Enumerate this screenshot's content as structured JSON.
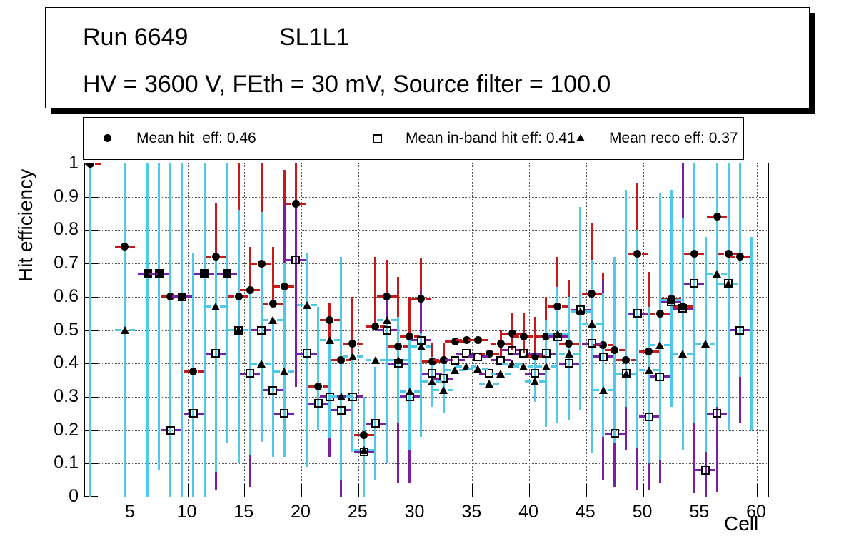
{
  "title": {
    "run": "Run 6649",
    "layer": "SL1L1",
    "conditions": "HV = 3600 V, FEth = 30 mV, Source filter = 100.0"
  },
  "legend": [
    {
      "label": "Mean hit  eff: 0.46",
      "marker": "circle"
    },
    {
      "label": "Mean in-band hit eff: 0.41",
      "marker": "open-square"
    },
    {
      "label": "Mean reco eff: 0.37",
      "marker": "triangle"
    }
  ],
  "chart_data": {
    "type": "scatter",
    "title": "",
    "xlabel": "Cell",
    "ylabel": "Hit efficiency",
    "xlim": [
      1,
      61
    ],
    "ylim": [
      0,
      1
    ],
    "x_ticks": [
      5,
      10,
      15,
      20,
      25,
      30,
      35,
      40,
      45,
      50,
      55,
      60
    ],
    "y_ticks": [
      0,
      0.1,
      0.2,
      0.3,
      0.4,
      0.5,
      0.6,
      0.7,
      0.8,
      0.9,
      1
    ],
    "grid": true,
    "legend_position": "top",
    "colors": {
      "hit_bar": "#c61a1a",
      "inband_bar": "#7a1fa2",
      "reco_bar": "#4ec9e8",
      "marker": "#000000"
    },
    "series": [
      {
        "name": "Mean hit  eff: 0.46",
        "marker": "circle",
        "mean": 0.46,
        "points": [
          [
            1,
            1.0
          ],
          [
            4,
            0.75
          ],
          [
            6,
            0.67
          ],
          [
            7,
            0.67
          ],
          [
            8,
            0.6
          ],
          [
            9,
            0.6
          ],
          [
            10,
            0.375
          ],
          [
            11,
            0.67
          ],
          [
            12,
            0.72
          ],
          [
            13,
            0.67
          ],
          [
            14,
            0.6
          ],
          [
            15,
            0.62
          ],
          [
            16,
            0.7
          ],
          [
            17,
            0.58
          ],
          [
            18,
            0.63
          ],
          [
            19,
            0.88
          ],
          [
            21,
            0.33
          ],
          [
            22,
            0.53
          ],
          [
            23,
            0.41
          ],
          [
            24,
            0.46
          ],
          [
            25,
            0.185
          ],
          [
            26,
            0.51
          ],
          [
            27,
            0.6
          ],
          [
            28,
            0.45
          ],
          [
            29,
            0.48
          ],
          [
            30,
            0.595
          ],
          [
            31,
            0.405
          ],
          [
            32,
            0.41
          ],
          [
            33,
            0.465
          ],
          [
            34,
            0.47
          ],
          [
            35,
            0.47
          ],
          [
            36,
            0.43
          ],
          [
            37,
            0.46
          ],
          [
            38,
            0.49
          ],
          [
            39,
            0.48
          ],
          [
            40,
            0.42
          ],
          [
            41,
            0.48
          ],
          [
            42,
            0.57
          ],
          [
            43,
            0.46
          ],
          [
            45,
            0.61
          ],
          [
            46,
            0.455
          ],
          [
            47,
            0.44
          ],
          [
            48,
            0.41
          ],
          [
            49,
            0.73
          ],
          [
            50,
            0.435
          ],
          [
            51,
            0.55
          ],
          [
            52,
            0.595
          ],
          [
            53,
            0.57
          ],
          [
            54,
            0.73
          ],
          [
            56,
            0.84
          ],
          [
            57,
            0.73
          ],
          [
            58,
            0.72
          ]
        ]
      },
      {
        "name": "Mean in-band hit eff: 0.41",
        "marker": "open-square",
        "mean": 0.41,
        "points": [
          [
            6,
            0.67
          ],
          [
            7,
            0.67
          ],
          [
            8,
            0.2
          ],
          [
            9,
            0.6
          ],
          [
            10,
            0.25
          ],
          [
            11,
            0.67
          ],
          [
            12,
            0.43
          ],
          [
            13,
            0.67
          ],
          [
            14,
            0.5
          ],
          [
            15,
            0.37
          ],
          [
            16,
            0.5
          ],
          [
            17,
            0.32
          ],
          [
            18,
            0.25
          ],
          [
            19,
            0.71
          ],
          [
            20,
            0.43
          ],
          [
            21,
            0.28
          ],
          [
            22,
            0.3
          ],
          [
            23,
            0.26
          ],
          [
            24,
            0.3
          ],
          [
            25,
            0.135
          ],
          [
            26,
            0.22
          ],
          [
            27,
            0.5
          ],
          [
            28,
            0.4
          ],
          [
            29,
            0.3
          ],
          [
            30,
            0.47
          ],
          [
            31,
            0.37
          ],
          [
            32,
            0.355
          ],
          [
            33,
            0.41
          ],
          [
            34,
            0.43
          ],
          [
            35,
            0.42
          ],
          [
            36,
            0.37
          ],
          [
            37,
            0.41
          ],
          [
            38,
            0.44
          ],
          [
            39,
            0.43
          ],
          [
            40,
            0.37
          ],
          [
            41,
            0.43
          ],
          [
            42,
            0.48
          ],
          [
            43,
            0.4
          ],
          [
            44,
            0.56
          ],
          [
            45,
            0.46
          ],
          [
            46,
            0.42
          ],
          [
            47,
            0.19
          ],
          [
            48,
            0.37
          ],
          [
            49,
            0.55
          ],
          [
            50,
            0.24
          ],
          [
            51,
            0.36
          ],
          [
            52,
            0.585
          ],
          [
            53,
            0.565
          ],
          [
            54,
            0.64
          ],
          [
            55,
            0.08
          ],
          [
            56,
            0.25
          ],
          [
            57,
            0.64
          ],
          [
            58,
            0.5
          ]
        ]
      },
      {
        "name": "Mean reco eff: 0.37",
        "marker": "triangle",
        "mean": 0.37,
        "points": [
          [
            4,
            0.5
          ],
          [
            12,
            0.57
          ],
          [
            14,
            0.5
          ],
          [
            16,
            0.4
          ],
          [
            17,
            0.53
          ],
          [
            18,
            0.375
          ],
          [
            20,
            0.575
          ],
          [
            22,
            0.47
          ],
          [
            23,
            0.3
          ],
          [
            24,
            0.42
          ],
          [
            25,
            0.14
          ],
          [
            26,
            0.41
          ],
          [
            27,
            0.53
          ],
          [
            28,
            0.41
          ],
          [
            29,
            0.315
          ],
          [
            30,
            0.45
          ],
          [
            31,
            0.345
          ],
          [
            32,
            0.32
          ],
          [
            33,
            0.38
          ],
          [
            34,
            0.39
          ],
          [
            35,
            0.385
          ],
          [
            36,
            0.34
          ],
          [
            37,
            0.37
          ],
          [
            38,
            0.4
          ],
          [
            39,
            0.39
          ],
          [
            40,
            0.345
          ],
          [
            41,
            0.39
          ],
          [
            42,
            0.49
          ],
          [
            43,
            0.43
          ],
          [
            44,
            0.555
          ],
          [
            45,
            0.52
          ],
          [
            46,
            0.32
          ],
          [
            48,
            0.37
          ],
          [
            50,
            0.38
          ],
          [
            51,
            0.455
          ],
          [
            52,
            0.59
          ],
          [
            53,
            0.43
          ],
          [
            55,
            0.46
          ],
          [
            56,
            0.67
          ],
          [
            57,
            0.64
          ]
        ]
      }
    ],
    "error_bars": {
      "hit": [
        [
          12,
          0.72,
          0.88
        ],
        [
          14,
          0.6,
          1.0
        ],
        [
          15,
          0.62,
          0.75
        ],
        [
          16,
          0.7,
          1.0
        ],
        [
          17,
          0.58,
          0.75
        ],
        [
          18,
          0.63,
          0.98
        ],
        [
          19,
          0.875,
          1.0
        ],
        [
          21,
          0.27,
          0.4
        ],
        [
          22,
          0.47,
          0.58
        ],
        [
          24,
          0.42,
          0.6
        ],
        [
          25,
          0.185,
          0.29
        ],
        [
          26,
          0.51,
          0.72
        ],
        [
          27,
          0.6,
          0.71
        ],
        [
          28,
          0.45,
          0.66
        ],
        [
          29,
          0.48,
          0.6
        ],
        [
          30,
          0.595,
          0.715
        ],
        [
          31,
          0.33,
          0.46
        ],
        [
          32,
          0.33,
          0.46
        ],
        [
          37,
          0.42,
          0.5
        ],
        [
          38,
          0.44,
          0.55
        ],
        [
          39,
          0.43,
          0.55
        ],
        [
          40,
          0.42,
          0.54
        ],
        [
          41,
          0.48,
          0.6
        ],
        [
          42,
          0.57,
          0.72
        ],
        [
          43,
          0.46,
          0.65
        ],
        [
          45,
          0.61,
          0.82
        ],
        [
          46,
          0.455,
          0.67
        ],
        [
          49,
          0.73,
          0.94
        ],
        [
          50,
          0.435,
          0.675
        ],
        [
          56,
          0.78,
          0.9
        ]
      ],
      "inband": [
        [
          10,
          0,
          0.04
        ],
        [
          12,
          0.02,
          0.075
        ],
        [
          15,
          0.03,
          0.125
        ],
        [
          18,
          0.25,
          0.88
        ],
        [
          19,
          0.33,
          0.87
        ],
        [
          22,
          0.12,
          0.3
        ],
        [
          23,
          0,
          0.05
        ],
        [
          25,
          0,
          0.135
        ],
        [
          26,
          0.05,
          0.13
        ],
        [
          27,
          0.4,
          0.6
        ],
        [
          28,
          0.04,
          0.41
        ],
        [
          29,
          0.04,
          0.3
        ],
        [
          30,
          0.47,
          0.62
        ],
        [
          45,
          0.46,
          0.64
        ],
        [
          46,
          0.05,
          0.65
        ],
        [
          47,
          0.03,
          0.19
        ],
        [
          48,
          0.14,
          0.27
        ],
        [
          49,
          0.02,
          0.145
        ],
        [
          50,
          0.02,
          0.1
        ],
        [
          51,
          0.04,
          0.11
        ],
        [
          53,
          0.44,
          1.0
        ],
        [
          54,
          0.01,
          0.22
        ],
        [
          55,
          0,
          0.135
        ],
        [
          56,
          0.012,
          0.27
        ],
        [
          58,
          0.22,
          0.36
        ]
      ],
      "reco": [
        [
          1,
          0,
          1
        ],
        [
          4,
          0,
          1
        ],
        [
          6,
          0,
          1
        ],
        [
          7,
          0.08,
          1
        ],
        [
          8,
          0,
          1
        ],
        [
          9,
          0,
          1
        ],
        [
          10,
          0,
          0.73
        ],
        [
          11,
          0,
          1
        ],
        [
          12,
          0.075,
          0.72
        ],
        [
          13,
          0.16,
          1
        ],
        [
          14,
          0.1,
          0.86
        ],
        [
          15,
          0.125,
          0.61
        ],
        [
          16,
          0.165,
          0.855
        ],
        [
          17,
          0.12,
          0.53
        ],
        [
          18,
          0.12,
          0.7
        ],
        [
          20,
          0.09,
          0.73
        ],
        [
          21,
          0.2,
          0.57
        ],
        [
          22,
          0.175,
          0.47
        ],
        [
          23,
          0.05,
          0.72
        ],
        [
          24,
          0.135,
          0.42
        ],
        [
          25,
          0,
          0.3
        ],
        [
          26,
          0.05,
          0.39
        ],
        [
          27,
          0.1,
          0.53
        ],
        [
          28,
          0.22,
          0.54
        ],
        [
          29,
          0.14,
          0.47
        ],
        [
          30,
          0.18,
          0.49
        ],
        [
          31,
          0.27,
          0.42
        ],
        [
          32,
          0.25,
          0.4
        ],
        [
          40,
          0.285,
          0.42
        ],
        [
          41,
          0.21,
          0.53
        ],
        [
          42,
          0.22,
          0.63
        ],
        [
          43,
          0.23,
          0.6
        ],
        [
          44,
          0.26,
          0.87
        ],
        [
          45,
          0.13,
          0.71
        ],
        [
          46,
          0.18,
          0.61
        ],
        [
          47,
          0.16,
          0.72
        ],
        [
          48,
          0.27,
          0.92
        ],
        [
          49,
          0.145,
          0.8
        ],
        [
          50,
          0.1,
          0.57
        ],
        [
          51,
          0.11,
          0.91
        ],
        [
          52,
          0.27,
          0.92
        ],
        [
          53,
          0.14,
          0.835
        ],
        [
          54,
          0.22,
          1.0
        ],
        [
          55,
          0.135,
          0.78
        ],
        [
          56,
          0.27,
          1.0
        ],
        [
          57,
          0.2,
          1.0
        ],
        [
          58,
          0.36,
          1.0
        ],
        [
          59,
          0.2,
          0.78
        ]
      ]
    }
  }
}
